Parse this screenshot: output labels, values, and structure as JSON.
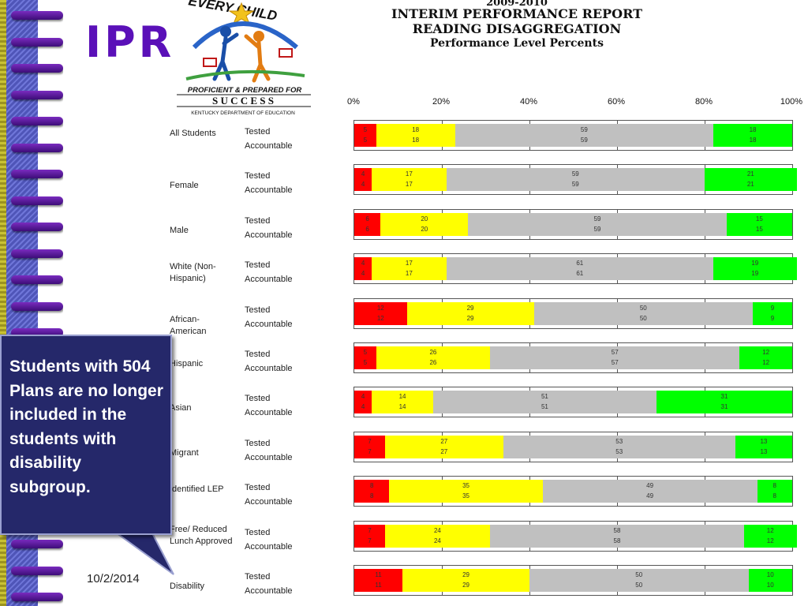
{
  "slide": {
    "title": "IPR",
    "date": "10/2/2014"
  },
  "logo": {
    "top_text": "EVERY CHILD",
    "tagline": "PROFICIENT & PREPARED FOR",
    "success": "S U C C E S S",
    "dept": "KENTUCKY DEPARTMENT OF EDUCATION"
  },
  "report": {
    "year_line": "2009-2010",
    "line1": "INTERIM PERFORMANCE REPORT",
    "line2": "READING DISAGGREGATION",
    "line3": "Performance Level Percents"
  },
  "callout": {
    "text": "Students with 504 Plans are no longer included in the students with disability subgroup."
  },
  "colors": {
    "novice": "#ff0000",
    "apprentice": "#ffff00",
    "proficient": "#c0c0c0",
    "distinguished": "#00ff00"
  },
  "chart_data": {
    "type": "bar",
    "orientation": "horizontal-stacked",
    "title": "INTERIM PERFORMANCE REPORT READING DISAGGREGATION Performance Level Percents",
    "x_ticks": [
      "0%",
      "20%",
      "40%",
      "60%",
      "80%",
      "100%"
    ],
    "xlim": [
      0,
      100
    ],
    "row_sublabels": [
      "Tested",
      "Accountable"
    ],
    "rows": [
      {
        "label": "All Students",
        "values": [
          5,
          18,
          59,
          18
        ]
      },
      {
        "label": "Female",
        "values": [
          4,
          17,
          59,
          21
        ]
      },
      {
        "label": "Male",
        "values": [
          6,
          20,
          59,
          15
        ]
      },
      {
        "label": "White (Non-Hispanic)",
        "values": [
          4,
          17,
          61,
          19
        ]
      },
      {
        "label": "African-American",
        "values": [
          12,
          29,
          50,
          9
        ]
      },
      {
        "label": "Hispanic",
        "values": [
          5,
          26,
          57,
          12
        ]
      },
      {
        "label": "Asian",
        "values": [
          4,
          14,
          51,
          31
        ]
      },
      {
        "label": "Migrant",
        "values": [
          7,
          27,
          53,
          13
        ]
      },
      {
        "label": "Identified LEP",
        "values": [
          8,
          35,
          49,
          8
        ]
      },
      {
        "label": "Free/ Reduced Lunch Approved",
        "values": [
          7,
          24,
          58,
          12
        ]
      },
      {
        "label": "Disability",
        "values": [
          11,
          29,
          50,
          10
        ]
      }
    ]
  }
}
